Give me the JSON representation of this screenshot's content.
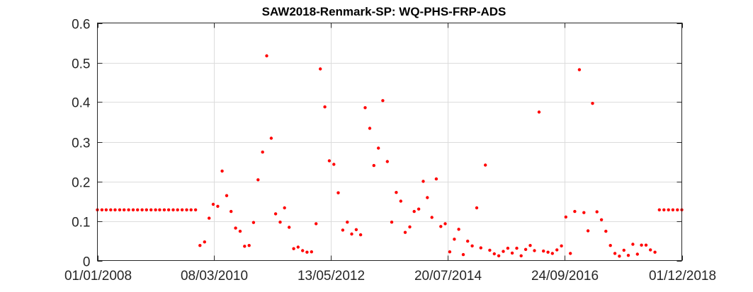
{
  "chart_data": {
    "type": "scatter",
    "title": "SAW2018-Renmark-SP: WQ-PHS-FRP-ADS",
    "xlabel": "",
    "ylabel": "",
    "x_axis": {
      "kind": "date",
      "range": [
        "2008-01-01",
        "2018-12-01"
      ],
      "ticks": [
        "2008-01-01",
        "2010-03-08",
        "2012-05-13",
        "2014-07-20",
        "2016-09-24",
        "2018-12-01"
      ],
      "tick_labels": [
        "01/01/2008",
        "08/03/2010",
        "13/05/2012",
        "20/07/2014",
        "24/09/2016",
        "01/12/2018"
      ]
    },
    "y_axis": {
      "range": [
        0,
        0.6
      ],
      "ticks": [
        0,
        0.1,
        0.2,
        0.3,
        0.4,
        0.5,
        0.6
      ],
      "tick_labels": [
        "0",
        "0.1",
        "0.2",
        "0.3",
        "0.4",
        "0.5",
        "0.6"
      ]
    },
    "grid": true,
    "legend": "none",
    "marker_color": "#ff0000",
    "series": [
      {
        "points": [
          [
            "2008-01-01",
            0.128
          ],
          [
            "2008-02-01",
            0.128
          ],
          [
            "2008-03-01",
            0.128
          ],
          [
            "2008-04-01",
            0.128
          ],
          [
            "2008-05-01",
            0.128
          ],
          [
            "2008-06-01",
            0.128
          ],
          [
            "2008-07-01",
            0.128
          ],
          [
            "2008-08-01",
            0.128
          ],
          [
            "2008-09-01",
            0.128
          ],
          [
            "2008-10-01",
            0.128
          ],
          [
            "2008-11-01",
            0.128
          ],
          [
            "2008-12-01",
            0.128
          ],
          [
            "2009-01-01",
            0.128
          ],
          [
            "2009-02-01",
            0.128
          ],
          [
            "2009-03-01",
            0.128
          ],
          [
            "2009-04-01",
            0.128
          ],
          [
            "2009-05-01",
            0.128
          ],
          [
            "2009-06-01",
            0.128
          ],
          [
            "2009-07-01",
            0.128
          ],
          [
            "2009-08-01",
            0.128
          ],
          [
            "2009-09-01",
            0.128
          ],
          [
            "2009-10-01",
            0.128
          ],
          [
            "2009-11-01",
            0.128
          ],
          [
            "2009-12-01",
            0.038
          ],
          [
            "2010-01-01",
            0.047
          ],
          [
            "2010-02-01",
            0.107
          ],
          [
            "2010-03-01",
            0.142
          ],
          [
            "2010-04-01",
            0.137
          ],
          [
            "2010-05-01",
            0.226
          ],
          [
            "2010-06-01",
            0.164
          ],
          [
            "2010-07-01",
            0.124
          ],
          [
            "2010-08-01",
            0.082
          ],
          [
            "2010-09-01",
            0.074
          ],
          [
            "2010-10-01",
            0.036
          ],
          [
            "2010-11-01",
            0.038
          ],
          [
            "2010-12-01",
            0.096
          ],
          [
            "2011-01-01",
            0.204
          ],
          [
            "2011-02-01",
            0.274
          ],
          [
            "2011-03-01",
            0.517
          ],
          [
            "2011-04-01",
            0.309
          ],
          [
            "2011-05-01",
            0.118
          ],
          [
            "2011-06-01",
            0.097
          ],
          [
            "2011-07-01",
            0.133
          ],
          [
            "2011-08-01",
            0.084
          ],
          [
            "2011-09-01",
            0.03
          ],
          [
            "2011-10-01",
            0.034
          ],
          [
            "2011-11-01",
            0.025
          ],
          [
            "2011-12-01",
            0.021
          ],
          [
            "2012-01-01",
            0.022
          ],
          [
            "2012-02-01",
            0.093
          ],
          [
            "2012-03-01",
            0.484
          ],
          [
            "2012-04-01",
            0.388
          ],
          [
            "2012-05-01",
            0.252
          ],
          [
            "2012-06-01",
            0.243
          ],
          [
            "2012-07-01",
            0.171
          ],
          [
            "2012-08-01",
            0.077
          ],
          [
            "2012-09-01",
            0.097
          ],
          [
            "2012-10-01",
            0.067
          ],
          [
            "2012-11-01",
            0.078
          ],
          [
            "2012-12-01",
            0.065
          ],
          [
            "2013-01-01",
            0.386
          ],
          [
            "2013-02-01",
            0.334
          ],
          [
            "2013-03-01",
            0.24
          ],
          [
            "2013-04-01",
            0.284
          ],
          [
            "2013-05-01",
            0.404
          ],
          [
            "2013-06-01",
            0.25
          ],
          [
            "2013-07-01",
            0.097
          ],
          [
            "2013-08-01",
            0.172
          ],
          [
            "2013-09-01",
            0.15
          ],
          [
            "2013-10-01",
            0.071
          ],
          [
            "2013-11-01",
            0.085
          ],
          [
            "2013-12-01",
            0.124
          ],
          [
            "2014-01-01",
            0.13
          ],
          [
            "2014-02-01",
            0.2
          ],
          [
            "2014-03-01",
            0.159
          ],
          [
            "2014-04-01",
            0.109
          ],
          [
            "2014-05-01",
            0.206
          ],
          [
            "2014-06-01",
            0.086
          ],
          [
            "2014-07-01",
            0.093
          ],
          [
            "2014-08-01",
            0.022
          ],
          [
            "2014-09-01",
            0.054
          ],
          [
            "2014-10-01",
            0.079
          ],
          [
            "2014-11-01",
            0.015
          ],
          [
            "2014-12-01",
            0.049
          ],
          [
            "2015-01-01",
            0.037
          ],
          [
            "2015-02-01",
            0.133
          ],
          [
            "2015-03-01",
            0.032
          ],
          [
            "2015-04-01",
            0.241
          ],
          [
            "2015-05-01",
            0.026
          ],
          [
            "2015-06-01",
            0.017
          ],
          [
            "2015-07-01",
            0.012
          ],
          [
            "2015-08-01",
            0.023
          ],
          [
            "2015-09-01",
            0.031
          ],
          [
            "2015-10-01",
            0.019
          ],
          [
            "2015-11-01",
            0.031
          ],
          [
            "2015-12-01",
            0.012
          ],
          [
            "2016-01-01",
            0.028
          ],
          [
            "2016-02-01",
            0.038
          ],
          [
            "2016-03-01",
            0.025
          ],
          [
            "2016-04-01",
            0.375
          ],
          [
            "2016-05-01",
            0.024
          ],
          [
            "2016-06-01",
            0.021
          ],
          [
            "2016-07-01",
            0.018
          ],
          [
            "2016-08-01",
            0.027
          ],
          [
            "2016-09-01",
            0.037
          ],
          [
            "2016-10-01",
            0.11
          ],
          [
            "2016-11-01",
            0.018
          ],
          [
            "2016-12-01",
            0.124
          ],
          [
            "2017-01-01",
            0.482
          ],
          [
            "2017-02-01",
            0.121
          ],
          [
            "2017-03-01",
            0.075
          ],
          [
            "2017-04-01",
            0.397
          ],
          [
            "2017-05-01",
            0.123
          ],
          [
            "2017-06-01",
            0.103
          ],
          [
            "2017-07-01",
            0.074
          ],
          [
            "2017-08-01",
            0.038
          ],
          [
            "2017-09-01",
            0.018
          ],
          [
            "2017-10-01",
            0.011
          ],
          [
            "2017-11-01",
            0.026
          ],
          [
            "2017-12-01",
            0.013
          ],
          [
            "2018-01-01",
            0.041
          ],
          [
            "2018-02-01",
            0.016
          ],
          [
            "2018-03-01",
            0.039
          ],
          [
            "2018-04-01",
            0.039
          ],
          [
            "2018-05-01",
            0.027
          ],
          [
            "2018-06-01",
            0.021
          ],
          [
            "2018-07-01",
            0.128
          ],
          [
            "2018-08-01",
            0.128
          ],
          [
            "2018-09-01",
            0.128
          ],
          [
            "2018-10-01",
            0.128
          ],
          [
            "2018-11-01",
            0.128
          ],
          [
            "2018-12-01",
            0.128
          ]
        ]
      }
    ]
  }
}
